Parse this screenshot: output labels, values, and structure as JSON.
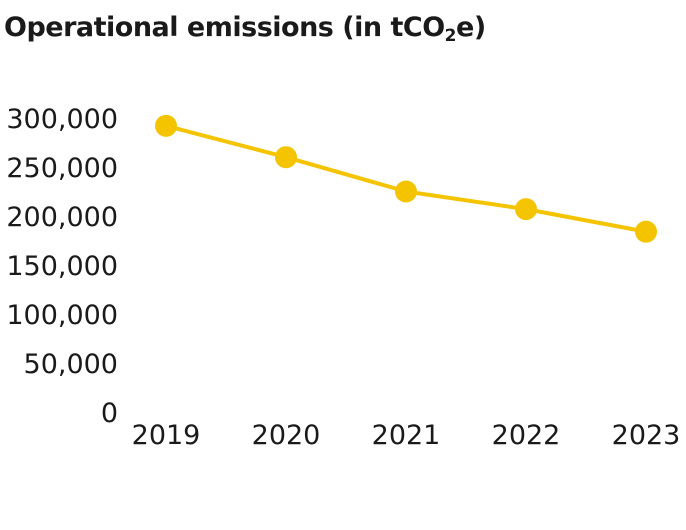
{
  "chart_data": {
    "type": "line",
    "title_main": "Operational emissions (in tCO",
    "title_sub": "2",
    "title_end": "e)",
    "categories": [
      "2019",
      "2020",
      "2021",
      "2022",
      "2023"
    ],
    "series": [
      {
        "values": [
          292000,
          260000,
          225000,
          207000,
          184000
        ],
        "color": "#f5c400"
      }
    ],
    "y_ticks": [
      0,
      50000,
      100000,
      150000,
      200000,
      250000,
      300000
    ],
    "y_tick_labels": [
      "0",
      "50,000",
      "100,000",
      "150,000",
      "200,000",
      "250,000",
      "300,000"
    ],
    "ylim": [
      0,
      300000
    ],
    "grid": false,
    "legend": "none"
  }
}
